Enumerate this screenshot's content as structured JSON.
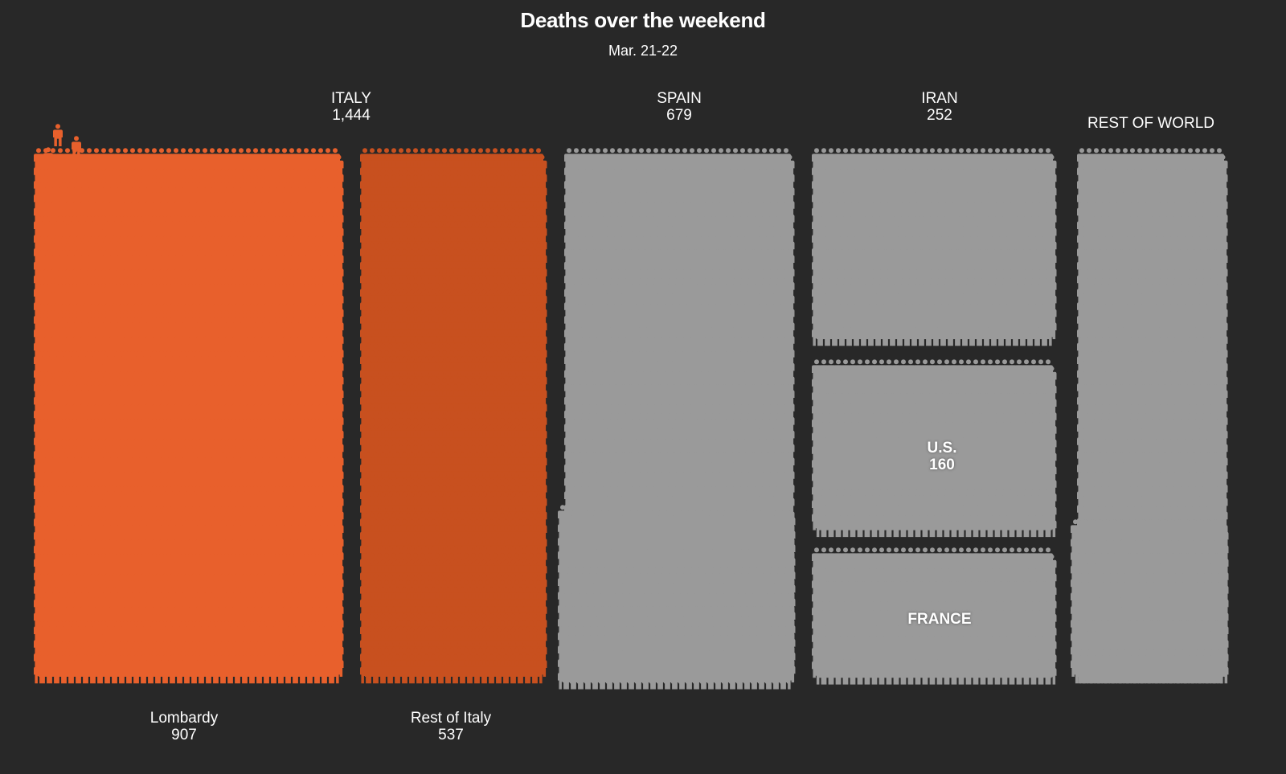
{
  "chart_data": {
    "type": "pictogram",
    "title": "Deaths over the weekend",
    "subtitle": "Mar. 21-22",
    "groups": [
      {
        "id": "italy",
        "name": "ITALY",
        "value": "1,444",
        "deaths": 1444,
        "color": "#e8602c"
      },
      {
        "id": "spain",
        "name": "SPAIN",
        "value": "679",
        "deaths": 679,
        "color": "#9a9a9a"
      },
      {
        "id": "iran",
        "name": "IRAN",
        "value": "252",
        "deaths": 252,
        "color": "#9a9a9a"
      },
      {
        "id": "us",
        "name": "U.S.",
        "value": "160",
        "deaths": 160,
        "color": "#9a9a9a"
      },
      {
        "id": "france",
        "name": "FRANCE",
        "value": "",
        "color": "#9a9a9a"
      },
      {
        "id": "rest-of-world",
        "name": "REST OF WORLD",
        "value": "",
        "color": "#9a9a9a"
      }
    ],
    "italy_breakdown": [
      {
        "id": "lombardy",
        "name": "Lombardy",
        "value": "907",
        "deaths": 907,
        "color": "#e8602c"
      },
      {
        "id": "rest-of-italy",
        "name": "Rest of Italy",
        "value": "537",
        "deaths": 537,
        "color": "#c8501f"
      }
    ]
  }
}
